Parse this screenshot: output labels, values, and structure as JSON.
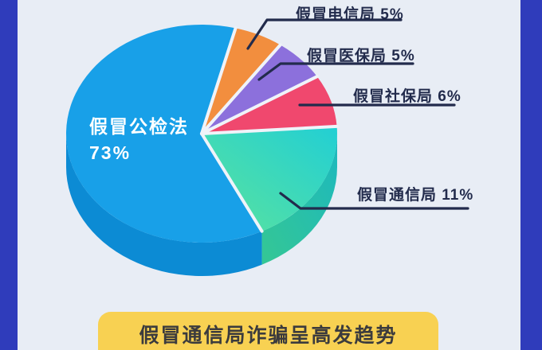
{
  "page": {
    "background": "#E8EDF5",
    "frame_color": "#2F3CBB"
  },
  "chart_data": {
    "type": "pie",
    "style": "3d-exploded",
    "unit": "%",
    "legend_position": "right-callout-labels",
    "slices": [
      {
        "label": "假冒公检法",
        "value": 73,
        "display": "73%",
        "color": "#18A0E8"
      },
      {
        "label": "假冒电信局",
        "value": 5,
        "display": "假冒电信局 5%",
        "color": "#F28E3E"
      },
      {
        "label": "假冒医保局",
        "value": 5,
        "display": "假冒医保局 5%",
        "color": "#8C70DC"
      },
      {
        "label": "假冒社保局",
        "value": 6,
        "display": "假冒社保局 6%",
        "color": "#F0486E"
      },
      {
        "label": "假冒通信局",
        "value": 11,
        "display": "假冒通信局 11%",
        "color": "#3BD8B9"
      }
    ]
  },
  "colors": {
    "blue_wall": "#0C8BD4",
    "teal_grad_start": "#5BE39D",
    "teal_grad_end": "#22CFD4",
    "teal_wall_start": "#35C794",
    "teal_wall_end": "#1CB8BF",
    "separator": "#EFF3F9",
    "leader_line": "#222B4C",
    "label_text": "#222B4C"
  },
  "banner": {
    "text": "假冒通信局诈骗呈高发趋势",
    "bg": "#F8D152",
    "text_color": "#3B3B3D"
  }
}
